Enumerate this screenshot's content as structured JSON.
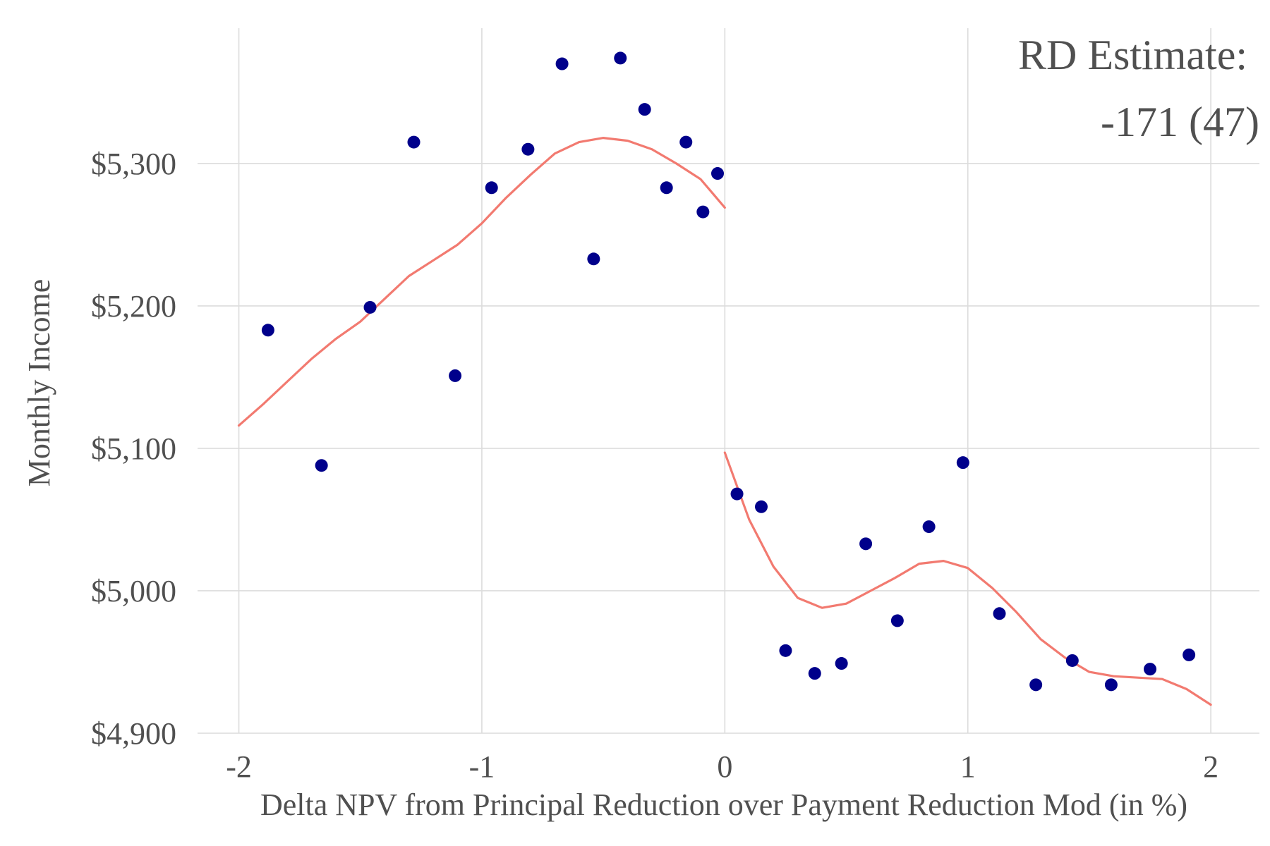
{
  "chart_data": {
    "type": "scatter",
    "xlabel": "Delta NPV from Principal Reduction over Payment Reduction Mod (in %)",
    "ylabel": "Monthly Income",
    "xlim": [
      -2.17,
      2.2
    ],
    "ylim": [
      4900,
      5395
    ],
    "x_ticks": [
      -2,
      -1,
      0,
      1,
      2
    ],
    "x_tick_labels": [
      "-2",
      "-1",
      "0",
      "1",
      "2"
    ],
    "y_ticks": [
      4900,
      5000,
      5100,
      5200,
      5300
    ],
    "y_tick_labels": [
      "$4,900",
      "$5,000",
      "$5,100",
      "$5,200",
      "$5,300"
    ],
    "grid": true,
    "annotation": [
      "RD Estimate:",
      "-171 (47)"
    ],
    "annotation_position": "top-right",
    "colors": {
      "points": "#00008b",
      "fit": "#f27a70",
      "grid": "#dcdcdc",
      "text": "#505050"
    },
    "points": {
      "x": [
        -1.88,
        -1.66,
        -1.46,
        -1.28,
        -1.11,
        -0.96,
        -0.81,
        -0.67,
        -0.54,
        -0.43,
        -0.33,
        -0.24,
        -0.16,
        -0.09,
        -0.03,
        0.05,
        0.15,
        0.25,
        0.37,
        0.48,
        0.58,
        0.71,
        0.84,
        0.98,
        1.13,
        1.28,
        1.43,
        1.59,
        1.75,
        1.91
      ],
      "y": [
        5183,
        5088,
        5199,
        5315,
        5151,
        5283,
        5310,
        5370,
        5233,
        5374,
        5338,
        5283,
        5315,
        5266,
        5293,
        5068,
        5059,
        4958,
        4942,
        4949,
        5033,
        4979,
        5045,
        5090,
        4984,
        4934,
        4951,
        4934,
        4945,
        4955
      ]
    },
    "fit_left": {
      "x": [
        -2.0,
        -1.9,
        -1.8,
        -1.7,
        -1.6,
        -1.5,
        -1.4,
        -1.3,
        -1.2,
        -1.1,
        -1.0,
        -0.9,
        -0.8,
        -0.7,
        -0.6,
        -0.5,
        -0.4,
        -0.3,
        -0.2,
        -0.1,
        0.0
      ],
      "y": [
        5116,
        5131,
        5147,
        5163,
        5177,
        5189,
        5205,
        5221,
        5232,
        5243,
        5258,
        5276,
        5292,
        5307,
        5315,
        5318,
        5316,
        5310,
        5300,
        5289,
        5269
      ]
    },
    "fit_right": {
      "x": [
        0.0,
        0.1,
        0.2,
        0.3,
        0.4,
        0.5,
        0.6,
        0.7,
        0.8,
        0.9,
        1.0,
        1.1,
        1.2,
        1.3,
        1.4,
        1.5,
        1.6,
        1.7,
        1.8,
        1.9,
        2.0
      ],
      "y": [
        5097,
        5050,
        5017,
        4995,
        4988,
        4991,
        5000,
        5009,
        5019,
        5021,
        5016,
        5002,
        4985,
        4966,
        4953,
        4943,
        4940,
        4939,
        4938,
        4931,
        4920
      ]
    }
  }
}
